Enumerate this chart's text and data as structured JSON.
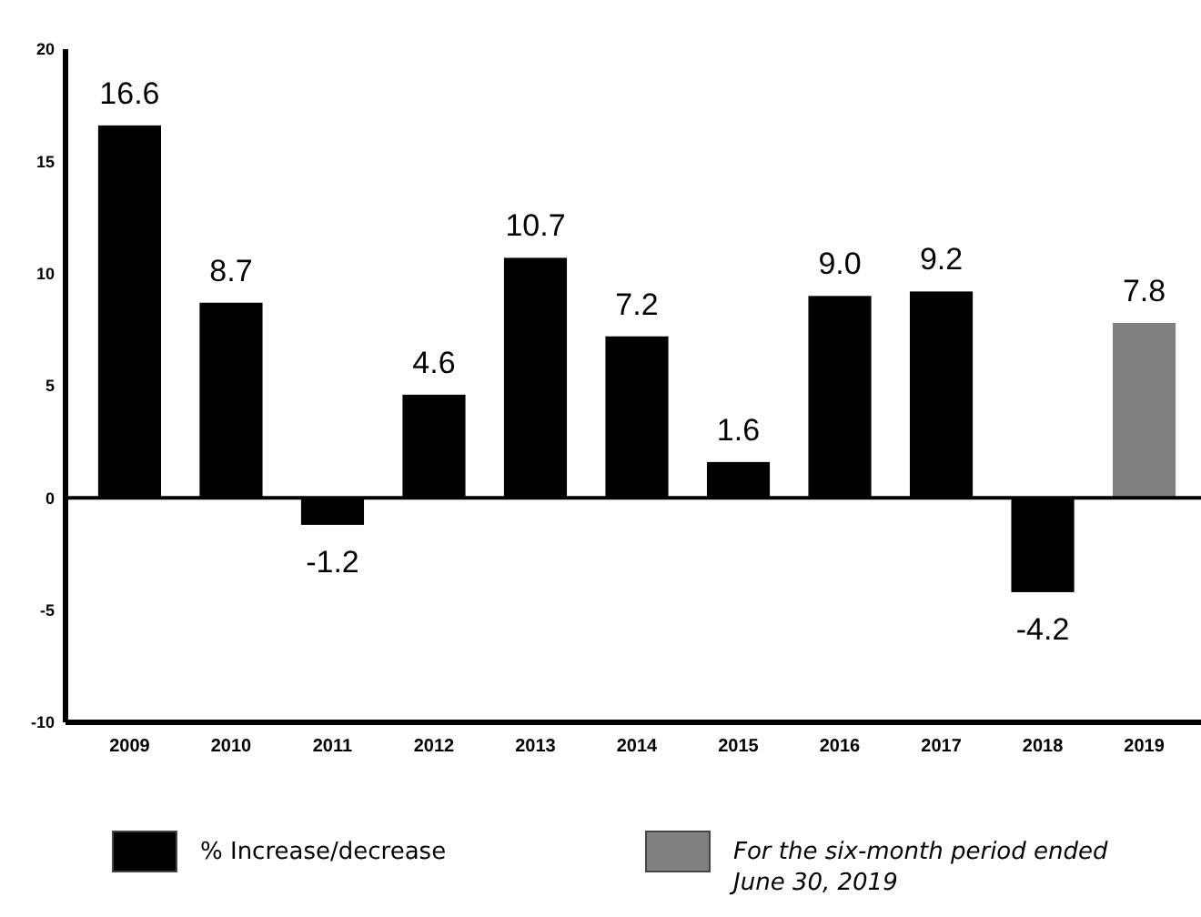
{
  "chart_data": {
    "type": "bar",
    "categories": [
      "2009",
      "2010",
      "2011",
      "2012",
      "2013",
      "2014",
      "2015",
      "2016",
      "2017",
      "2018",
      "2019"
    ],
    "series": [
      {
        "name": "% Increase/decrease",
        "color": "#000000",
        "values": [
          16.6,
          8.7,
          -1.2,
          4.6,
          10.7,
          7.2,
          1.6,
          9.0,
          9.2,
          -4.2,
          null
        ],
        "value_labels": [
          "16.6",
          "8.7",
          "-1.2",
          "4.6",
          "10.7",
          "7.2",
          "1.6",
          "9.0",
          "9.2",
          "-4.2",
          null
        ]
      },
      {
        "name": "For the six-month period ended June 30, 2019",
        "color": "#808080",
        "values": [
          null,
          null,
          null,
          null,
          null,
          null,
          null,
          null,
          null,
          null,
          7.8
        ],
        "value_labels": [
          null,
          null,
          null,
          null,
          null,
          null,
          null,
          null,
          null,
          null,
          "7.8"
        ]
      }
    ],
    "ylim": [
      -10,
      20
    ],
    "yticks": [
      -10,
      -5,
      0,
      5,
      10,
      15,
      20
    ],
    "legend": "bottom"
  }
}
